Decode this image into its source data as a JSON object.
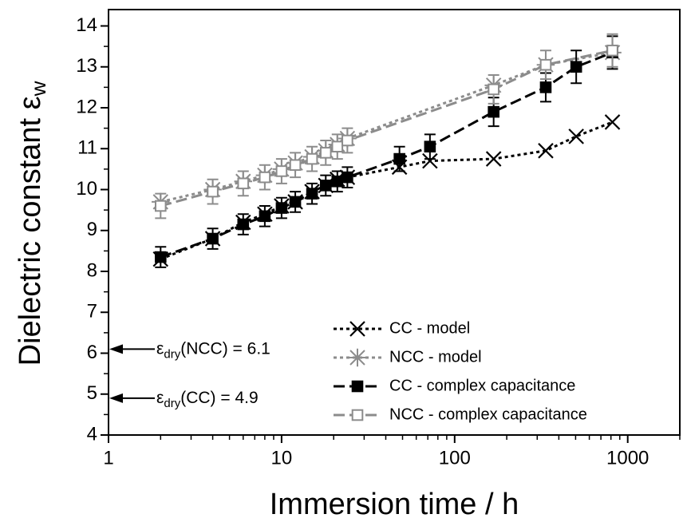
{
  "chart_data": {
    "type": "scatter-line",
    "xlabel": "Immersion time / h",
    "ylabel": {
      "text": "Dielectric constant ε",
      "sub": "w"
    },
    "xscale": "log",
    "xlim": [
      1,
      2000
    ],
    "ylim": [
      4,
      14.4
    ],
    "xticks": [
      1,
      10,
      100,
      1000
    ],
    "yticks": [
      4,
      5,
      6,
      7,
      8,
      9,
      10,
      11,
      12,
      13,
      14
    ],
    "legend": "lower right",
    "annotations": [
      {
        "symbol": "ε",
        "sub": "dry",
        "text": "(NCC) = 6.1",
        "y": 6.1
      },
      {
        "symbol": "ε",
        "sub": "dry",
        "text": "(CC) = 4.9",
        "y": 4.9
      }
    ],
    "series": [
      {
        "name": "CC - model",
        "color": "#000000",
        "marker": "x",
        "dash": "dotted",
        "x": [
          2,
          4,
          6,
          8,
          10,
          12,
          15,
          18,
          21,
          24,
          48,
          72,
          168,
          336,
          504,
          816
        ],
        "values": [
          8.3,
          8.8,
          9.2,
          9.4,
          9.6,
          9.7,
          9.95,
          10.1,
          10.25,
          10.3,
          10.55,
          10.7,
          10.75,
          10.95,
          11.3,
          11.65
        ]
      },
      {
        "name": "NCC - model",
        "color": "#8c8c8c",
        "marker": "asterisk",
        "dash": "dotted",
        "x": [
          2,
          4,
          6,
          8,
          10,
          12,
          15,
          18,
          21,
          24,
          168,
          336,
          816
        ],
        "values": [
          9.7,
          10.0,
          10.2,
          10.35,
          10.5,
          10.65,
          10.8,
          10.95,
          11.1,
          11.25,
          12.55,
          13.05,
          13.35
        ]
      },
      {
        "name": "CC - complex capacitance",
        "color": "#000000",
        "marker": "square",
        "dash": "dashed",
        "x": [
          2,
          4,
          6,
          8,
          10,
          12,
          15,
          18,
          21,
          24,
          48,
          72,
          168,
          336,
          504,
          816
        ],
        "values": [
          8.35,
          8.8,
          9.15,
          9.35,
          9.55,
          9.7,
          9.9,
          10.1,
          10.2,
          10.3,
          10.75,
          11.05,
          11.9,
          12.5,
          13.0,
          13.35
        ],
        "errors": [
          0.25,
          0.25,
          0.25,
          0.25,
          0.25,
          0.25,
          0.25,
          0.25,
          0.25,
          0.25,
          0.3,
          0.3,
          0.35,
          0.35,
          0.4,
          0.4
        ]
      },
      {
        "name": "NCC - complex capacitance",
        "color": "#8c8c8c",
        "marker": "open-square",
        "dash": "dashed",
        "x": [
          2,
          4,
          6,
          8,
          10,
          12,
          15,
          18,
          21,
          24,
          168,
          336,
          816
        ],
        "values": [
          9.6,
          9.95,
          10.15,
          10.3,
          10.45,
          10.6,
          10.75,
          10.9,
          11.05,
          11.2,
          12.45,
          13.05,
          13.4
        ],
        "errors": [
          0.3,
          0.3,
          0.3,
          0.3,
          0.3,
          0.3,
          0.3,
          0.3,
          0.3,
          0.3,
          0.35,
          0.35,
          0.4
        ]
      }
    ]
  }
}
